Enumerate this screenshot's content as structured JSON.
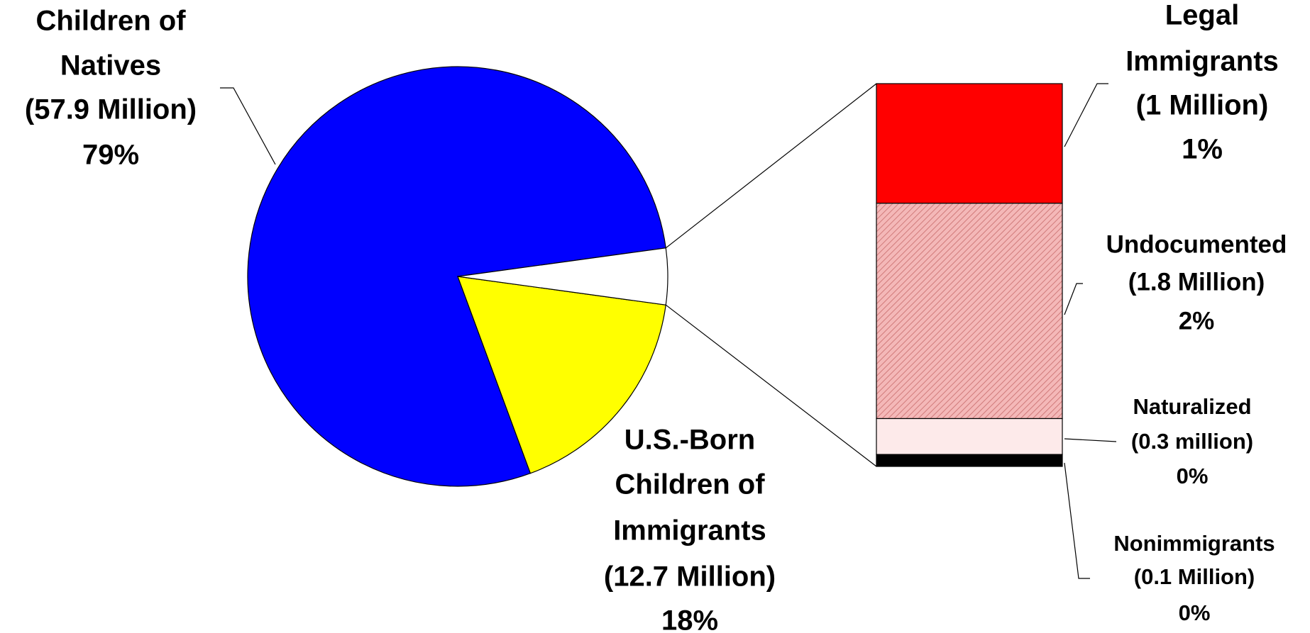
{
  "chart_data": {
    "type": "pie-of-bar",
    "pie": [
      {
        "name_lines": [
          "Children of",
          "Natives"
        ],
        "value": 57.9,
        "value_label": "(57.9 Million)",
        "percent": 79,
        "percent_label": "79%",
        "color": "#0000ff"
      },
      {
        "name_lines": [
          "U.S.-Born",
          "Children of",
          "Immigrants"
        ],
        "value": 12.7,
        "value_label": "(12.7 Million)",
        "percent": 18,
        "percent_label": "18%",
        "color": "#ffff00"
      },
      {
        "value": 3.2,
        "color": "#ffffff"
      }
    ],
    "bar": [
      {
        "name_lines": [
          "Legal",
          "Immigrants"
        ],
        "value": 1,
        "value_label": "(1 Million)",
        "percent": 1,
        "percent_label": "1%",
        "color": "#ff0000",
        "label_color": "#ff0000"
      },
      {
        "name_lines": [
          "Undocumented"
        ],
        "value": 1.8,
        "value_label": "(1.8 Million)",
        "percent": 2,
        "percent_label": "2%",
        "color": "#f4b8b8",
        "pattern": "diagonal"
      },
      {
        "name_lines": [
          "Naturalized"
        ],
        "value": 0.3,
        "value_label": "(0.3 million)",
        "percent": 0,
        "percent_label": "0%",
        "color": "#fdeaea"
      },
      {
        "name_lines": [
          "Nonimmigrants"
        ],
        "value": 0.1,
        "value_label": "(0.1 Million)",
        "percent": 0,
        "percent_label": "0%",
        "color": "#000000"
      }
    ]
  }
}
